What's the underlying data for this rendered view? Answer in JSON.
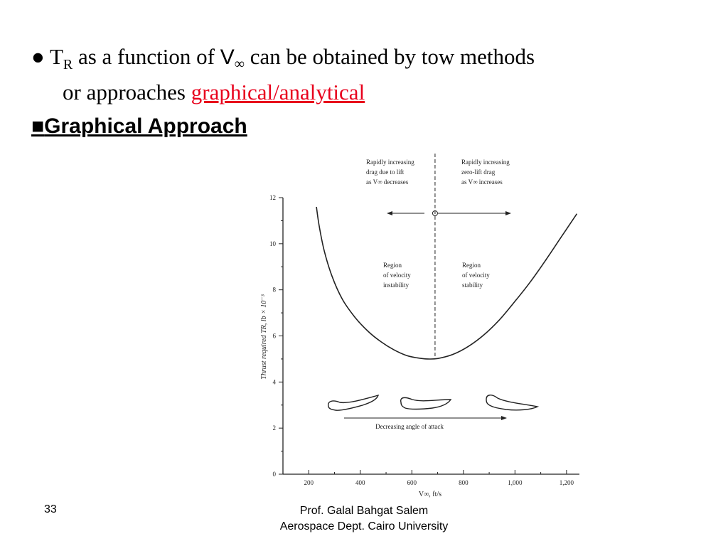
{
  "slide": {
    "bullet_symbol": "●",
    "line1_t": "T",
    "line1_t_sub": "R",
    "line1_mid": " as a function of ",
    "line1_v": "V",
    "line1_v_sub": "∞",
    "line1_end": " can be obtained by tow methods",
    "line2_start": "or approaches ",
    "line2_link": "graphical/analytical",
    "heading_symbol": "■",
    "heading_text": "Graphical  Approach",
    "page_number": "33",
    "author": "Prof. Galal Bahgat Salem",
    "affiliation": "Aerospace Dept. Cairo University"
  },
  "colors": {
    "accent_red": "#e8001c",
    "ink": "#222222"
  },
  "chart_data": {
    "type": "line",
    "title": "",
    "xlabel": "V∞, ft/s",
    "ylabel": "Thrust required TR, lb × 10⁻³",
    "xlim": [
      100,
      1250
    ],
    "ylim": [
      0,
      12
    ],
    "x_ticks": [
      200,
      400,
      600,
      800,
      1000,
      1200
    ],
    "x_tick_labels": [
      "200",
      "400",
      "600",
      "800",
      "1,000",
      "1,200"
    ],
    "y_ticks": [
      0,
      2,
      4,
      6,
      8,
      10,
      12
    ],
    "y_tick_labels": [
      "0",
      "2",
      "4",
      "6",
      "8",
      "10",
      "12"
    ],
    "grid": false,
    "series": [
      {
        "x": [
          230,
          240,
          260,
          290,
          330,
          380,
          430,
          480,
          530,
          580,
          620,
          660,
          700,
          760,
          820,
          880,
          940,
          1000,
          1060,
          1120,
          1180,
          1240
        ],
        "y": [
          11.6,
          10.8,
          9.7,
          8.6,
          7.6,
          6.8,
          6.2,
          5.75,
          5.4,
          5.15,
          5.05,
          5.0,
          5.02,
          5.2,
          5.55,
          6.05,
          6.7,
          7.5,
          8.35,
          9.3,
          10.3,
          11.3
        ]
      }
    ],
    "divider_x": 690,
    "minimum_point": {
      "x": 690,
      "y": 5.0
    },
    "annotations": {
      "left_top": [
        "Rapidly increasing",
        "drag due to lift",
        "as V∞ decreases"
      ],
      "right_top": [
        "Rapidly increasing",
        "zero-lift drag",
        "as V∞ increases"
      ],
      "left_region": [
        "Region",
        "of velocity",
        "instability"
      ],
      "right_region": [
        "Region",
        "of velocity",
        "stability"
      ],
      "bottom_arrow": "Decreasing angle of attack"
    }
  }
}
